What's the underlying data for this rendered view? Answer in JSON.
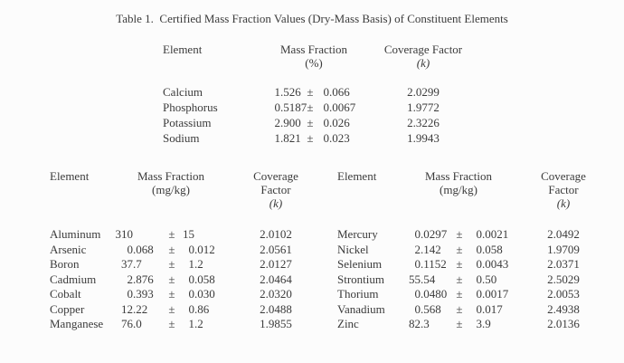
{
  "title": "Table 1.  Certified Mass Fraction Values (Dry-Mass Basis) of Constituent Elements",
  "pm_symbol": "±",
  "colors": {
    "page_background": "#fcfcfc",
    "text": "#3b3b3b"
  },
  "top_table": {
    "headers": {
      "element": "Element",
      "mass_fraction": "Mass Fraction",
      "unit": "(%)",
      "coverage_line1": "Coverage Factor",
      "k_label": "(k)"
    },
    "rows": [
      {
        "element": "Calcium",
        "value": "1.526",
        "uncertainty": "0.066",
        "k": "2.0299"
      },
      {
        "element": "Phosphorus",
        "value": "0.5187",
        "uncertainty": "0.0067",
        "k": "1.9772"
      },
      {
        "element": "Potassium",
        "value": "2.900",
        "uncertainty": "0.026",
        "k": "2.3226"
      },
      {
        "element": "Sodium",
        "value": "1.821",
        "uncertainty": "0.023",
        "k": "1.9943"
      }
    ]
  },
  "bottom_left_table": {
    "headers": {
      "element": "Element",
      "mass_fraction": "Mass Fraction",
      "unit": "(mg/kg)",
      "coverage_line1": "Coverage",
      "coverage_line2": "Factor",
      "k_label": "(k)"
    },
    "rows": [
      {
        "element": "Aluminum",
        "value": "310",
        "uncertainty": "15",
        "k": "2.0102"
      },
      {
        "element": "Arsenic",
        "value": "0.068",
        "uncertainty": "0.012",
        "k": "2.0561"
      },
      {
        "element": "Boron",
        "value": "37.7",
        "uncertainty": "1.2",
        "k": "2.0127"
      },
      {
        "element": "Cadmium",
        "value": "2.876",
        "uncertainty": "0.058",
        "k": "2.0464"
      },
      {
        "element": "Cobalt",
        "value": "0.393",
        "uncertainty": "0.030",
        "k": "2.0320"
      },
      {
        "element": "Copper",
        "value": "12.22",
        "uncertainty": "0.86",
        "k": "2.0488"
      },
      {
        "element": "Manganese",
        "value": "76.0",
        "uncertainty": "1.2",
        "k": "1.9855"
      }
    ]
  },
  "bottom_right_table": {
    "headers": {
      "element": "Element",
      "mass_fraction": "Mass Fraction",
      "unit": "(mg/kg)",
      "coverage_line1": "Coverage",
      "coverage_line2": "Factor",
      "k_label": "(k)"
    },
    "rows": [
      {
        "element": "Mercury",
        "value": "0.0297",
        "uncertainty": "0.0021",
        "k": "2.0492"
      },
      {
        "element": "Nickel",
        "value": "2.142",
        "uncertainty": "0.058",
        "k": "1.9709"
      },
      {
        "element": "Selenium",
        "value": "0.1152",
        "uncertainty": "0.0043",
        "k": "2.0371"
      },
      {
        "element": "Strontium",
        "value": "55.54",
        "uncertainty": "0.50",
        "k": "2.5029"
      },
      {
        "element": "Thorium",
        "value": "0.0480",
        "uncertainty": "0.0017",
        "k": "2.0053"
      },
      {
        "element": "Vanadium",
        "value": "0.568",
        "uncertainty": "0.017",
        "k": "2.4938"
      },
      {
        "element": "Zinc",
        "value": "82.3",
        "uncertainty": "3.9",
        "k": "2.0136"
      }
    ]
  }
}
